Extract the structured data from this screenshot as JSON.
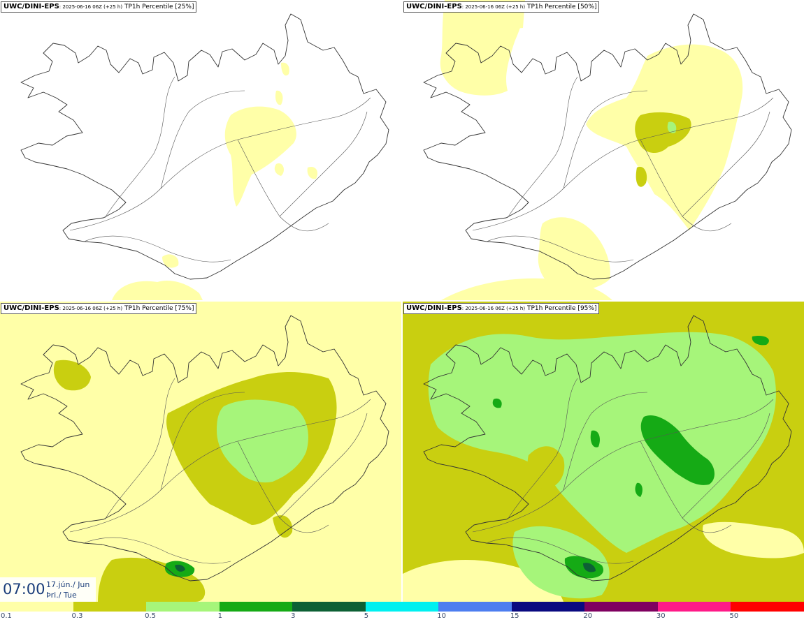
{
  "panels": [
    {
      "model": "UWC/DINI-EPS",
      "run": ": 2025-06-16 06Z (+25 h)",
      "param": " TP1h Percentile [25%]"
    },
    {
      "model": "UWC/DINI-EPS",
      "run": ": 2025-06-16 06Z (+25 h)",
      "param": " TP1h Percentile [50%]"
    },
    {
      "model": "UWC/DINI-EPS",
      "run": ": 2025-06-16 06Z (+25 h)",
      "param": " TP1h Percentile [75%]"
    },
    {
      "model": "UWC/DINI-EPS",
      "run": ": 2025-06-16 06Z (+25 h)",
      "param": " TP1h Percentile [95%]"
    }
  ],
  "valid_time": {
    "time": "07:00",
    "date": "17.jún./ Jun",
    "weekday": "Þri./ Tue"
  },
  "legend": {
    "labels": [
      "0.1",
      "0.3",
      "0.5",
      "1",
      "3",
      "5",
      "10",
      "15",
      "20",
      "30",
      "50"
    ],
    "colors": [
      "#ffffa8",
      "#c9cf10",
      "#a6f57a",
      "#15aa15",
      "#0d6035",
      "#00f0f0",
      "#4d7ef0",
      "#0a0a80",
      "#7f0060",
      "#ff1a88",
      "#ff0000"
    ]
  },
  "colors": {
    "coast": "#333333",
    "time_text": "#1a3d7a"
  }
}
